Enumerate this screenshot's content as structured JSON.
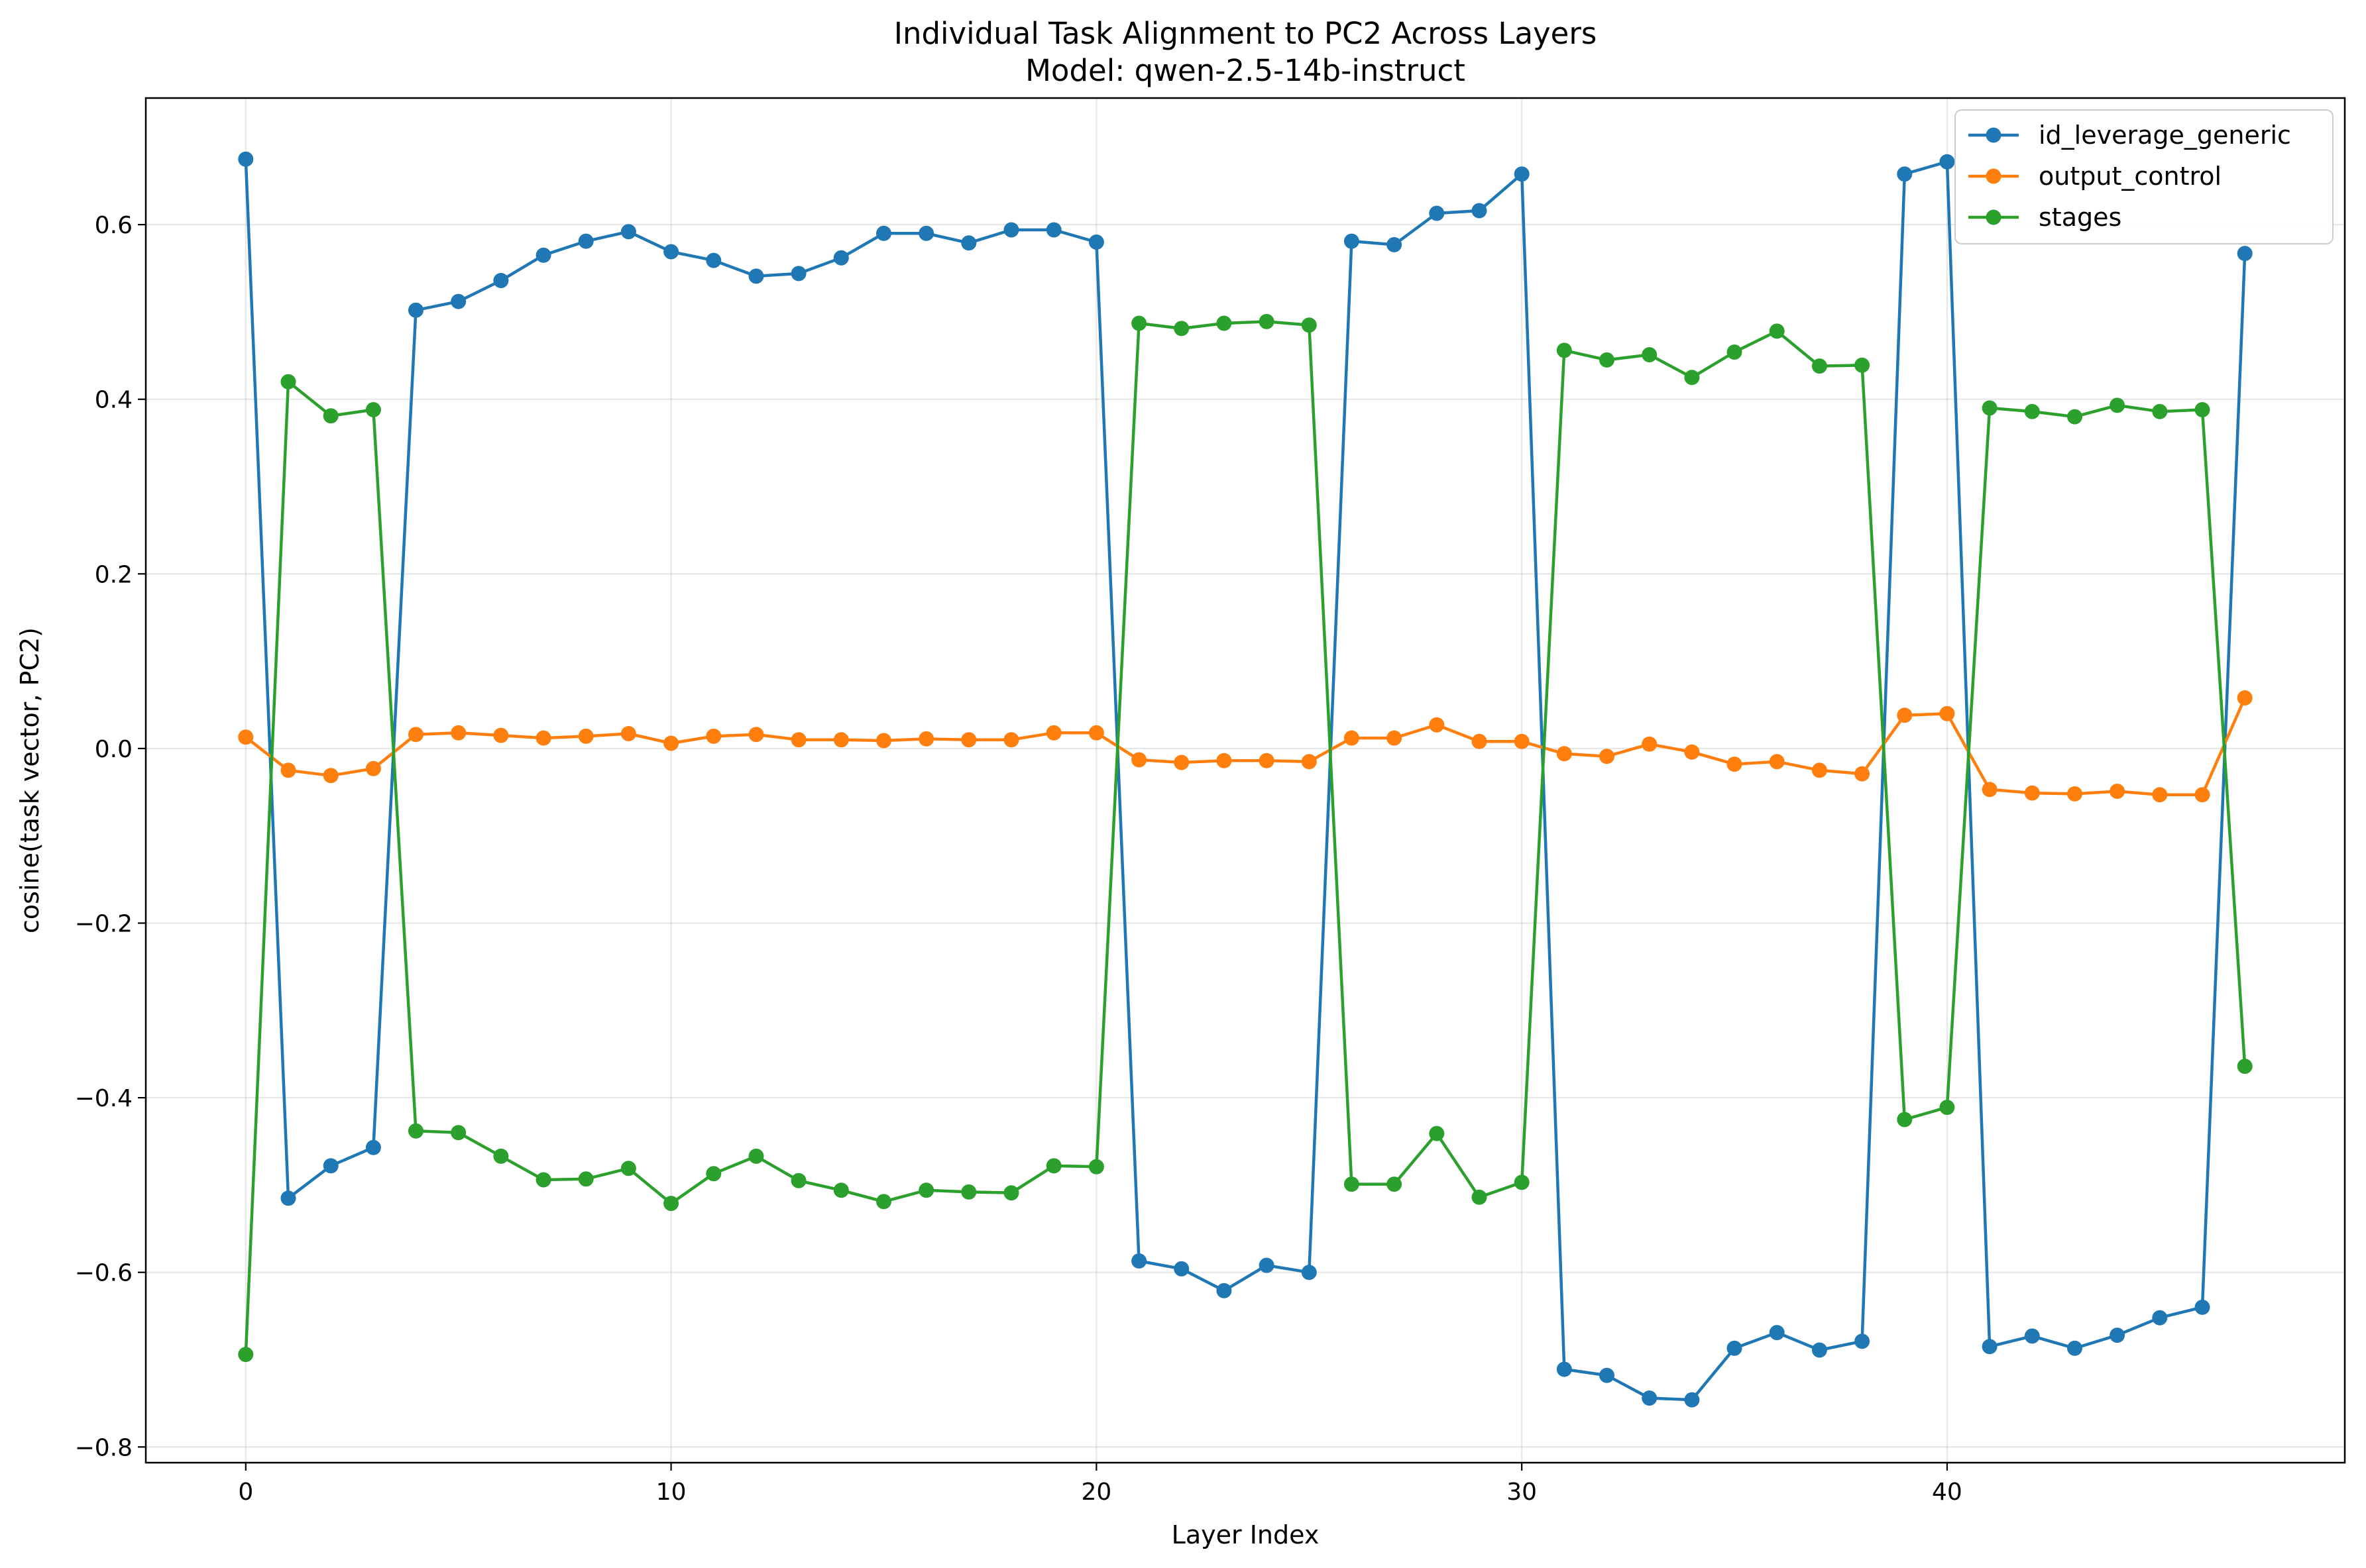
{
  "chart_data": {
    "type": "line",
    "title": "Individual Task Alignment to PC2 Across Layers",
    "subtitle": "Model: qwen-2.5-14b-instruct",
    "xlabel": "Layer Index",
    "ylabel": "cosine(task vector, PC2)",
    "xlim": [
      -2.35,
      49.35
    ],
    "ylim": [
      -0.818,
      0.745
    ],
    "xticks": [
      0,
      10,
      20,
      30,
      40
    ],
    "xtick_labels": [
      "0",
      "10",
      "20",
      "30",
      "40"
    ],
    "yticks": [
      -0.8,
      -0.6,
      -0.4,
      -0.2,
      0.0,
      0.2,
      0.4,
      0.6
    ],
    "ytick_labels": [
      "−0.8",
      "−0.6",
      "−0.4",
      "−0.2",
      "0.0",
      "0.2",
      "0.4",
      "0.6"
    ],
    "grid": true,
    "legend_position": "top-right",
    "x": [
      0,
      1,
      2,
      3,
      4,
      5,
      6,
      7,
      8,
      9,
      10,
      11,
      12,
      13,
      14,
      15,
      16,
      17,
      18,
      19,
      20,
      21,
      22,
      23,
      24,
      25,
      26,
      27,
      28,
      29,
      30,
      31,
      32,
      33,
      34,
      35,
      36,
      37,
      38,
      39,
      40,
      41,
      42,
      43,
      44,
      45,
      46,
      47
    ],
    "series": [
      {
        "name": "id_leverage_generic",
        "color": "#1f77b4",
        "values": [
          0.675,
          -0.515,
          -0.478,
          -0.457,
          0.502,
          0.512,
          0.536,
          0.565,
          0.581,
          0.592,
          0.569,
          0.559,
          0.541,
          0.544,
          0.562,
          0.59,
          0.59,
          0.579,
          0.594,
          0.594,
          0.58,
          -0.587,
          -0.596,
          -0.621,
          -0.592,
          -0.6,
          0.581,
          0.577,
          0.613,
          0.616,
          0.658,
          -0.711,
          -0.718,
          -0.744,
          -0.746,
          -0.687,
          -0.669,
          -0.689,
          -0.679,
          0.658,
          0.672,
          -0.685,
          -0.673,
          -0.687,
          -0.672,
          -0.652,
          -0.64,
          0.567
        ]
      },
      {
        "name": "output_control",
        "color": "#ff7f0e",
        "values": [
          0.013,
          -0.025,
          -0.031,
          -0.023,
          0.016,
          0.018,
          0.015,
          0.012,
          0.014,
          0.017,
          0.006,
          0.014,
          0.016,
          0.01,
          0.01,
          0.009,
          0.011,
          0.01,
          0.01,
          0.018,
          0.018,
          -0.013,
          -0.016,
          -0.014,
          -0.014,
          -0.015,
          0.012,
          0.012,
          0.027,
          0.008,
          0.008,
          -0.006,
          -0.009,
          0.005,
          -0.004,
          -0.018,
          -0.015,
          -0.025,
          -0.029,
          0.038,
          0.04,
          -0.047,
          -0.051,
          -0.052,
          -0.049,
          -0.053,
          -0.053,
          0.058
        ]
      },
      {
        "name": "stages",
        "color": "#2ca02c",
        "values": [
          -0.694,
          0.42,
          0.381,
          0.388,
          -0.438,
          -0.44,
          -0.467,
          -0.494,
          -0.493,
          -0.481,
          -0.521,
          -0.487,
          -0.467,
          -0.495,
          -0.506,
          -0.519,
          -0.506,
          -0.508,
          -0.509,
          -0.478,
          -0.479,
          0.487,
          0.481,
          0.487,
          0.489,
          0.485,
          -0.499,
          -0.499,
          -0.441,
          -0.514,
          -0.497,
          0.456,
          0.445,
          0.451,
          0.425,
          0.454,
          0.478,
          0.438,
          0.439,
          -0.425,
          -0.411,
          0.39,
          0.386,
          0.38,
          0.393,
          0.386,
          0.388,
          -0.364
        ]
      }
    ]
  }
}
